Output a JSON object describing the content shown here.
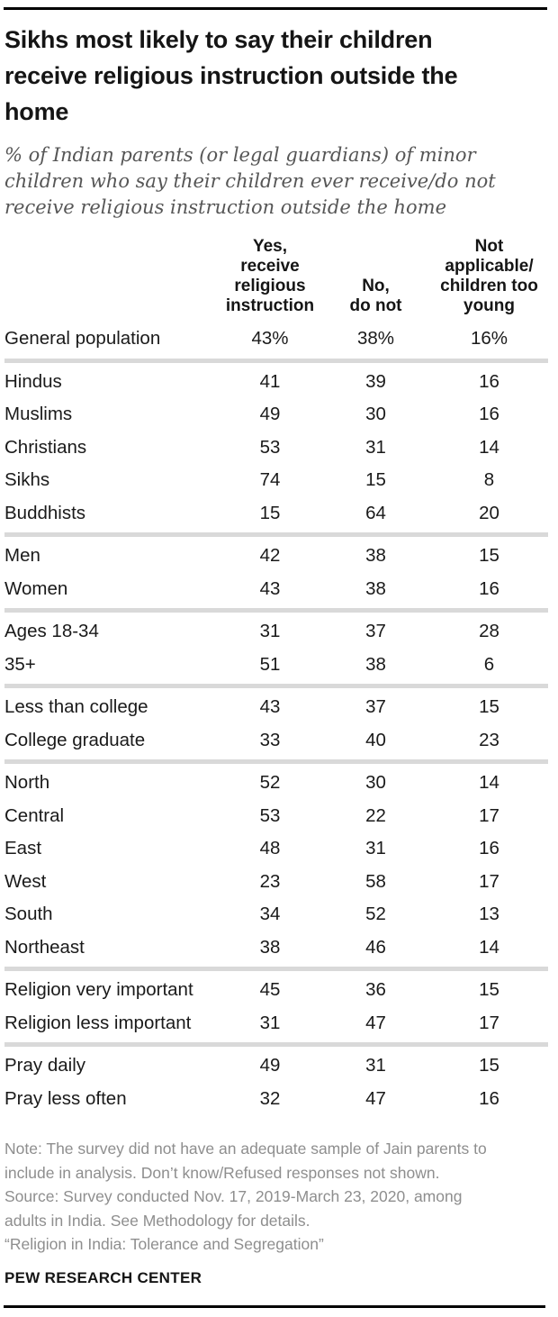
{
  "colors": {
    "rule": "#000000",
    "group_separator": "#d9d9d9",
    "title_text": "#151515",
    "subtitle_text": "#565656",
    "note_text": "#8e8e8e",
    "body_text": "#1a1a1a"
  },
  "title": "Sikhs most likely to say their children receive religious instruction outside the home",
  "subtitle": "% of Indian parents (or legal guardians) of minor children who say their children ever receive/do not receive religious instruction outside the home",
  "chart_data": {
    "type": "table",
    "columns": [
      "Yes,\nreceive\nreligious\ninstruction",
      "No,\ndo not",
      "Not\napplicable/\nchildren too\nyoung"
    ],
    "groups": [
      {
        "rows": [
          {
            "label": "General population",
            "values": [
              "43%",
              "38%",
              "16%"
            ]
          }
        ]
      },
      {
        "rows": [
          {
            "label": "Hindus",
            "values": [
              "41",
              "39",
              "16"
            ]
          },
          {
            "label": "Muslims",
            "values": [
              "49",
              "30",
              "16"
            ]
          },
          {
            "label": "Christians",
            "values": [
              "53",
              "31",
              "14"
            ]
          },
          {
            "label": "Sikhs",
            "values": [
              "74",
              "15",
              "8"
            ]
          },
          {
            "label": "Buddhists",
            "values": [
              "15",
              "64",
              "20"
            ]
          }
        ]
      },
      {
        "rows": [
          {
            "label": "Men",
            "values": [
              "42",
              "38",
              "15"
            ]
          },
          {
            "label": "Women",
            "values": [
              "43",
              "38",
              "16"
            ]
          }
        ]
      },
      {
        "rows": [
          {
            "label": "Ages 18-34",
            "values": [
              "31",
              "37",
              "28"
            ]
          },
          {
            "label": "35+",
            "values": [
              "51",
              "38",
              "6"
            ]
          }
        ]
      },
      {
        "rows": [
          {
            "label": "Less than college",
            "values": [
              "43",
              "37",
              "15"
            ]
          },
          {
            "label": "College graduate",
            "values": [
              "33",
              "40",
              "23"
            ]
          }
        ]
      },
      {
        "rows": [
          {
            "label": "North",
            "values": [
              "52",
              "30",
              "14"
            ]
          },
          {
            "label": "Central",
            "values": [
              "53",
              "22",
              "17"
            ]
          },
          {
            "label": "East",
            "values": [
              "48",
              "31",
              "16"
            ]
          },
          {
            "label": "West",
            "values": [
              "23",
              "58",
              "17"
            ]
          },
          {
            "label": "South",
            "values": [
              "34",
              "52",
              "13"
            ]
          },
          {
            "label": "Northeast",
            "values": [
              "38",
              "46",
              "14"
            ]
          }
        ]
      },
      {
        "rows": [
          {
            "label": "Religion very important",
            "values": [
              "45",
              "36",
              "15"
            ]
          },
          {
            "label": "Religion less important",
            "values": [
              "31",
              "47",
              "17"
            ]
          }
        ]
      },
      {
        "rows": [
          {
            "label": "Pray daily",
            "values": [
              "49",
              "31",
              "15"
            ]
          },
          {
            "label": "Pray less often",
            "values": [
              "32",
              "47",
              "16"
            ]
          }
        ]
      }
    ]
  },
  "notes": [
    "Note: The survey did not have an adequate sample of Jain parents to include in analysis. Don’t know/Refused responses not shown.",
    "Source: Survey conducted Nov. 17, 2019-March 23, 2020, among adults in India. See Methodology for details.",
    "“Religion in India: Tolerance and Segregation”"
  ],
  "footer": "PEW RESEARCH CENTER"
}
